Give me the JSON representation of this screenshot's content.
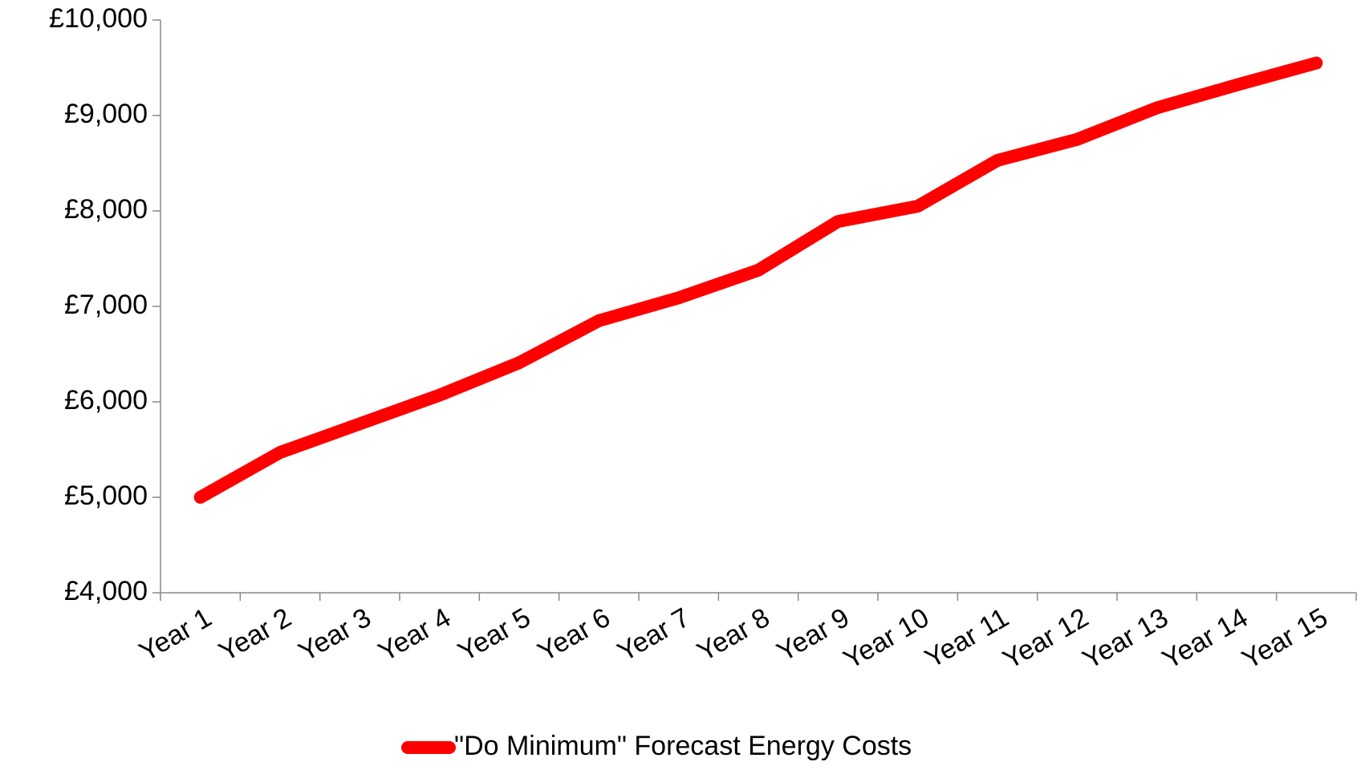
{
  "chart_data": {
    "type": "line",
    "categories": [
      "Year 1",
      "Year 2",
      "Year 3",
      "Year 4",
      "Year 5",
      "Year 6",
      "Year 7",
      "Year 8",
      "Year 9",
      "Year 10",
      "Year 11",
      "Year 12",
      "Year 13",
      "Year 14",
      "Year 15"
    ],
    "series": [
      {
        "name": "\"Do Minimum\" Forecast Energy Costs",
        "color": "#ff0000",
        "values": [
          5000,
          5470,
          5770,
          6070,
          6410,
          6850,
          7090,
          7380,
          7890,
          8050,
          8530,
          8750,
          9080,
          9320,
          9550
        ]
      }
    ],
    "ylim": [
      4000,
      10000
    ],
    "yticks": [
      {
        "value": 4000,
        "label": "£4,000"
      },
      {
        "value": 5000,
        "label": "£5,000"
      },
      {
        "value": 6000,
        "label": "£6,000"
      },
      {
        "value": 7000,
        "label": "£7,000"
      },
      {
        "value": 8000,
        "label": "£8,000"
      },
      {
        "value": 9000,
        "label": "£9,000"
      },
      {
        "value": 10000,
        "label": "£10,000"
      }
    ],
    "grid": false,
    "legend": "bottom"
  }
}
